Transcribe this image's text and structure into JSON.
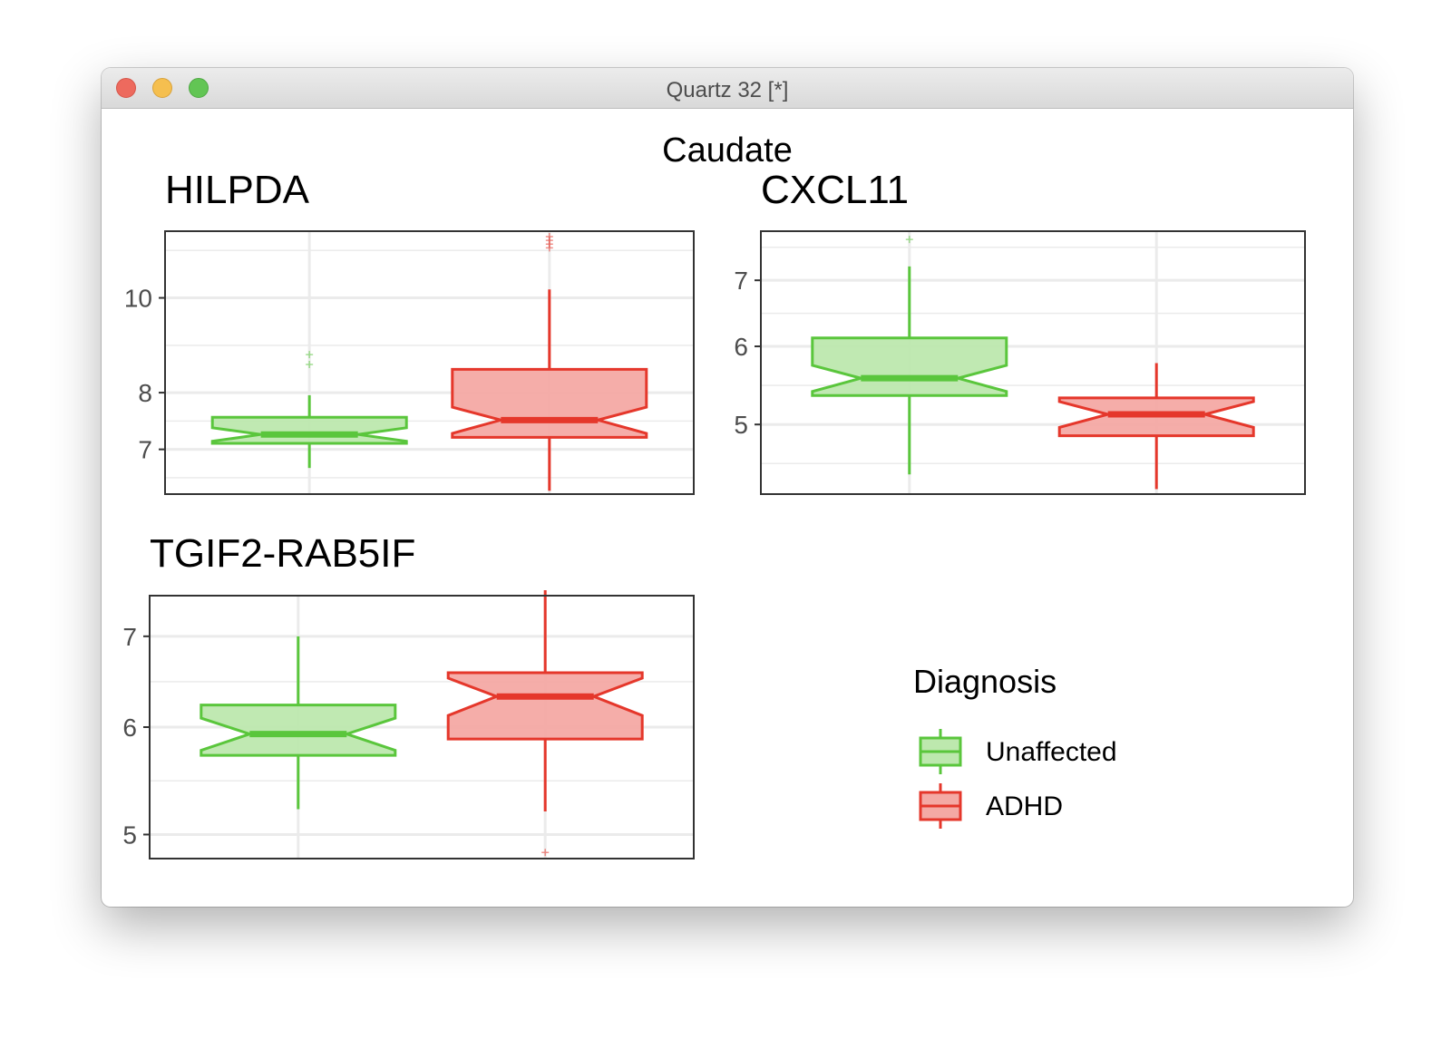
{
  "window": {
    "title": "Quartz 32 [*]"
  },
  "colors": {
    "unaffected_line": "#5ac63c",
    "unaffected_fill": "#bde8ae",
    "adhd_line": "#e5372b",
    "adhd_fill": "#f4a9a4",
    "grid": "#ebebeb",
    "panel_border": "#333333"
  },
  "chart_data": {
    "type": "boxplot",
    "title": "Caudate",
    "legend": {
      "title": "Diagnosis",
      "placement": "right",
      "entries": [
        {
          "label": "Unaffected",
          "color": "#5ac63c"
        },
        {
          "label": "ADHD",
          "color": "#e5372b"
        }
      ]
    },
    "panels": [
      {
        "name": "HILPDA",
        "ylim": [
          6.3,
          11.7
        ],
        "y_scale": "log",
        "yticks": [
          7,
          8,
          10
        ],
        "tick_labels": [
          "7",
          "8",
          "10"
        ],
        "boxes": [
          {
            "group": "Unaffected",
            "whisker_low": 6.7,
            "q1": 7.1,
            "median": 7.25,
            "q3": 7.55,
            "whisker_high": 7.95,
            "outliers": [
              8.55,
              8.75
            ]
          },
          {
            "group": "ADHD",
            "whisker_low": 6.35,
            "q1": 7.2,
            "median": 7.5,
            "q3": 8.45,
            "whisker_high": 10.2,
            "outliers": [
              11.25,
              11.35,
              11.45,
              11.55
            ]
          }
        ]
      },
      {
        "name": "CXCL11",
        "ylim": [
          4.25,
          7.85
        ],
        "y_scale": "log",
        "yticks": [
          5,
          6,
          7
        ],
        "tick_labels": [
          "5",
          "6",
          "7"
        ],
        "boxes": [
          {
            "group": "Unaffected",
            "whisker_low": 4.45,
            "q1": 5.35,
            "median": 5.57,
            "q3": 6.12,
            "whisker_high": 7.23,
            "outliers": [
              7.7
            ]
          },
          {
            "group": "ADHD",
            "whisker_low": 4.3,
            "q1": 4.87,
            "median": 5.12,
            "q3": 5.32,
            "whisker_high": 5.77,
            "outliers": []
          }
        ]
      },
      {
        "name": "TGIF2-RAB5IF",
        "ylim": [
          4.8,
          7.5
        ],
        "y_scale": "log",
        "yticks": [
          5,
          6,
          7
        ],
        "tick_labels": [
          "5",
          "6",
          "7"
        ],
        "boxes": [
          {
            "group": "Unaffected",
            "whisker_low": 5.22,
            "q1": 5.72,
            "median": 5.93,
            "q3": 6.23,
            "whisker_high": 7.0,
            "outliers": []
          },
          {
            "group": "ADHD",
            "whisker_low": 5.2,
            "q1": 5.88,
            "median": 6.32,
            "q3": 6.58,
            "whisker_high": 7.57,
            "outliers": [
              4.85
            ]
          }
        ]
      }
    ]
  }
}
